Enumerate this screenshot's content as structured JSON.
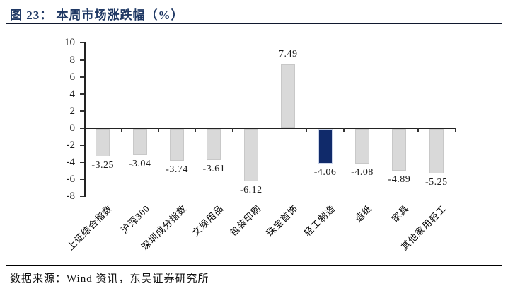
{
  "header": {
    "title": "图 23： 本周市场涨跌幅（%）"
  },
  "footer": {
    "source": "数据来源：Wind 资讯，东吴证券研究所"
  },
  "chart_data": {
    "type": "bar",
    "title": "本周市场涨跌幅（%）",
    "xlabel": "",
    "ylabel": "",
    "categories": [
      "上证综合指数",
      "沪深300",
      "深圳成分指数",
      "文娱用品",
      "包装印刷",
      "珠宝首饰",
      "轻工制造",
      "造纸",
      "家具",
      "其他家用轻工"
    ],
    "values": [
      -3.25,
      -3.04,
      -3.74,
      -3.61,
      -6.12,
      7.49,
      -4.06,
      -4.08,
      -4.89,
      -5.25
    ],
    "value_labels": [
      "-3.25",
      "-3.04",
      "-3.74",
      "-3.61",
      "-6.12",
      "7.49",
      "-4.06",
      "-4.08",
      "-4.89",
      "-5.25"
    ],
    "highlight_index": 6,
    "highlight_category": "轻工制造",
    "colors": {
      "bar_default": "#d9d9d9",
      "bar_default_border": "#c8c8c8",
      "bar_highlight": "#102a6a",
      "bar_highlight_border": "#cdd6ea",
      "title_text": "#1f3864",
      "axis": "#222222"
    },
    "yticks": [
      10,
      8,
      6,
      4,
      2,
      0,
      -2,
      -4,
      -6,
      -8
    ],
    "ylim": [
      -8,
      10
    ],
    "grid": false,
    "legend": null
  }
}
